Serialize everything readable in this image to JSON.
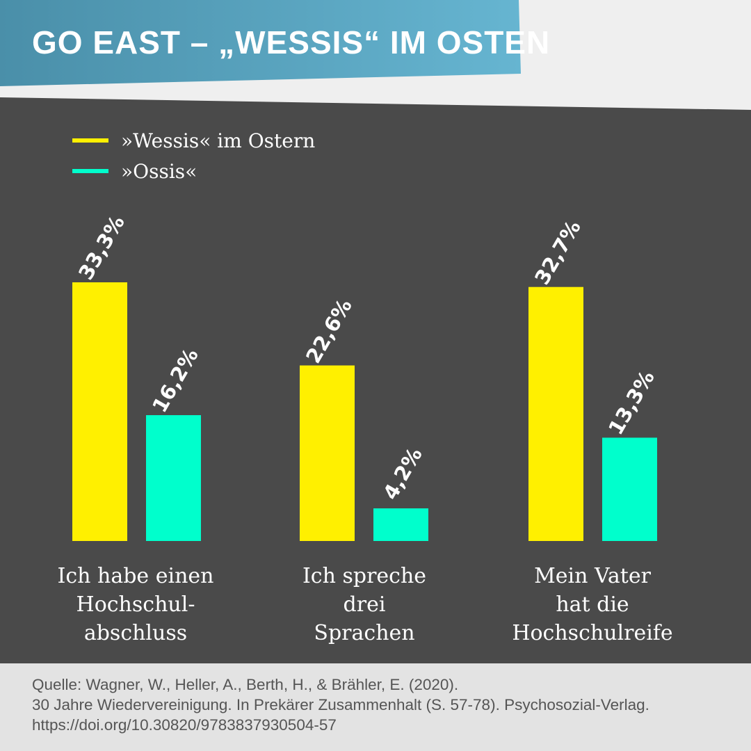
{
  "title": "GO EAST – „WESSIS“ IM OSTEN",
  "colors": {
    "header_gradient_start": "#4a8fa9",
    "header_gradient_end": "#66b5d1",
    "panel": "#4a4a4a",
    "page": "#efefef",
    "footer": "#e3e3e3",
    "series_wessis": "#fff000",
    "series_ossis": "#00ffcc"
  },
  "chart_data": {
    "type": "bar",
    "categories": [
      [
        "Ich habe einen",
        "Hochschul-",
        "abschluss"
      ],
      [
        "Ich spreche",
        "drei",
        "Sprachen"
      ],
      [
        "Mein Vater",
        "hat die",
        "Hochschulreife"
      ]
    ],
    "series": [
      {
        "name": "»Wessis« im Ostern",
        "values": [
          33.3,
          22.6,
          32.7
        ],
        "labels": [
          "33,3%",
          "22,6%",
          "32,7%"
        ]
      },
      {
        "name": "»Ossis«",
        "values": [
          16.2,
          4.2,
          13.3
        ],
        "labels": [
          "16,2%",
          "4,2%",
          "13,3%"
        ]
      }
    ],
    "legend": "top-left",
    "grid": false
  },
  "source": [
    "Quelle: Wagner, W., Heller, A., Berth, H., & Brähler, E. (2020).",
    "30 Jahre Wiedervereinigung. In Prekärer Zusammenhalt (S. 57-78). Psychosozial-Verlag.",
    "https://doi.org/10.30820/9783837930504-57"
  ]
}
